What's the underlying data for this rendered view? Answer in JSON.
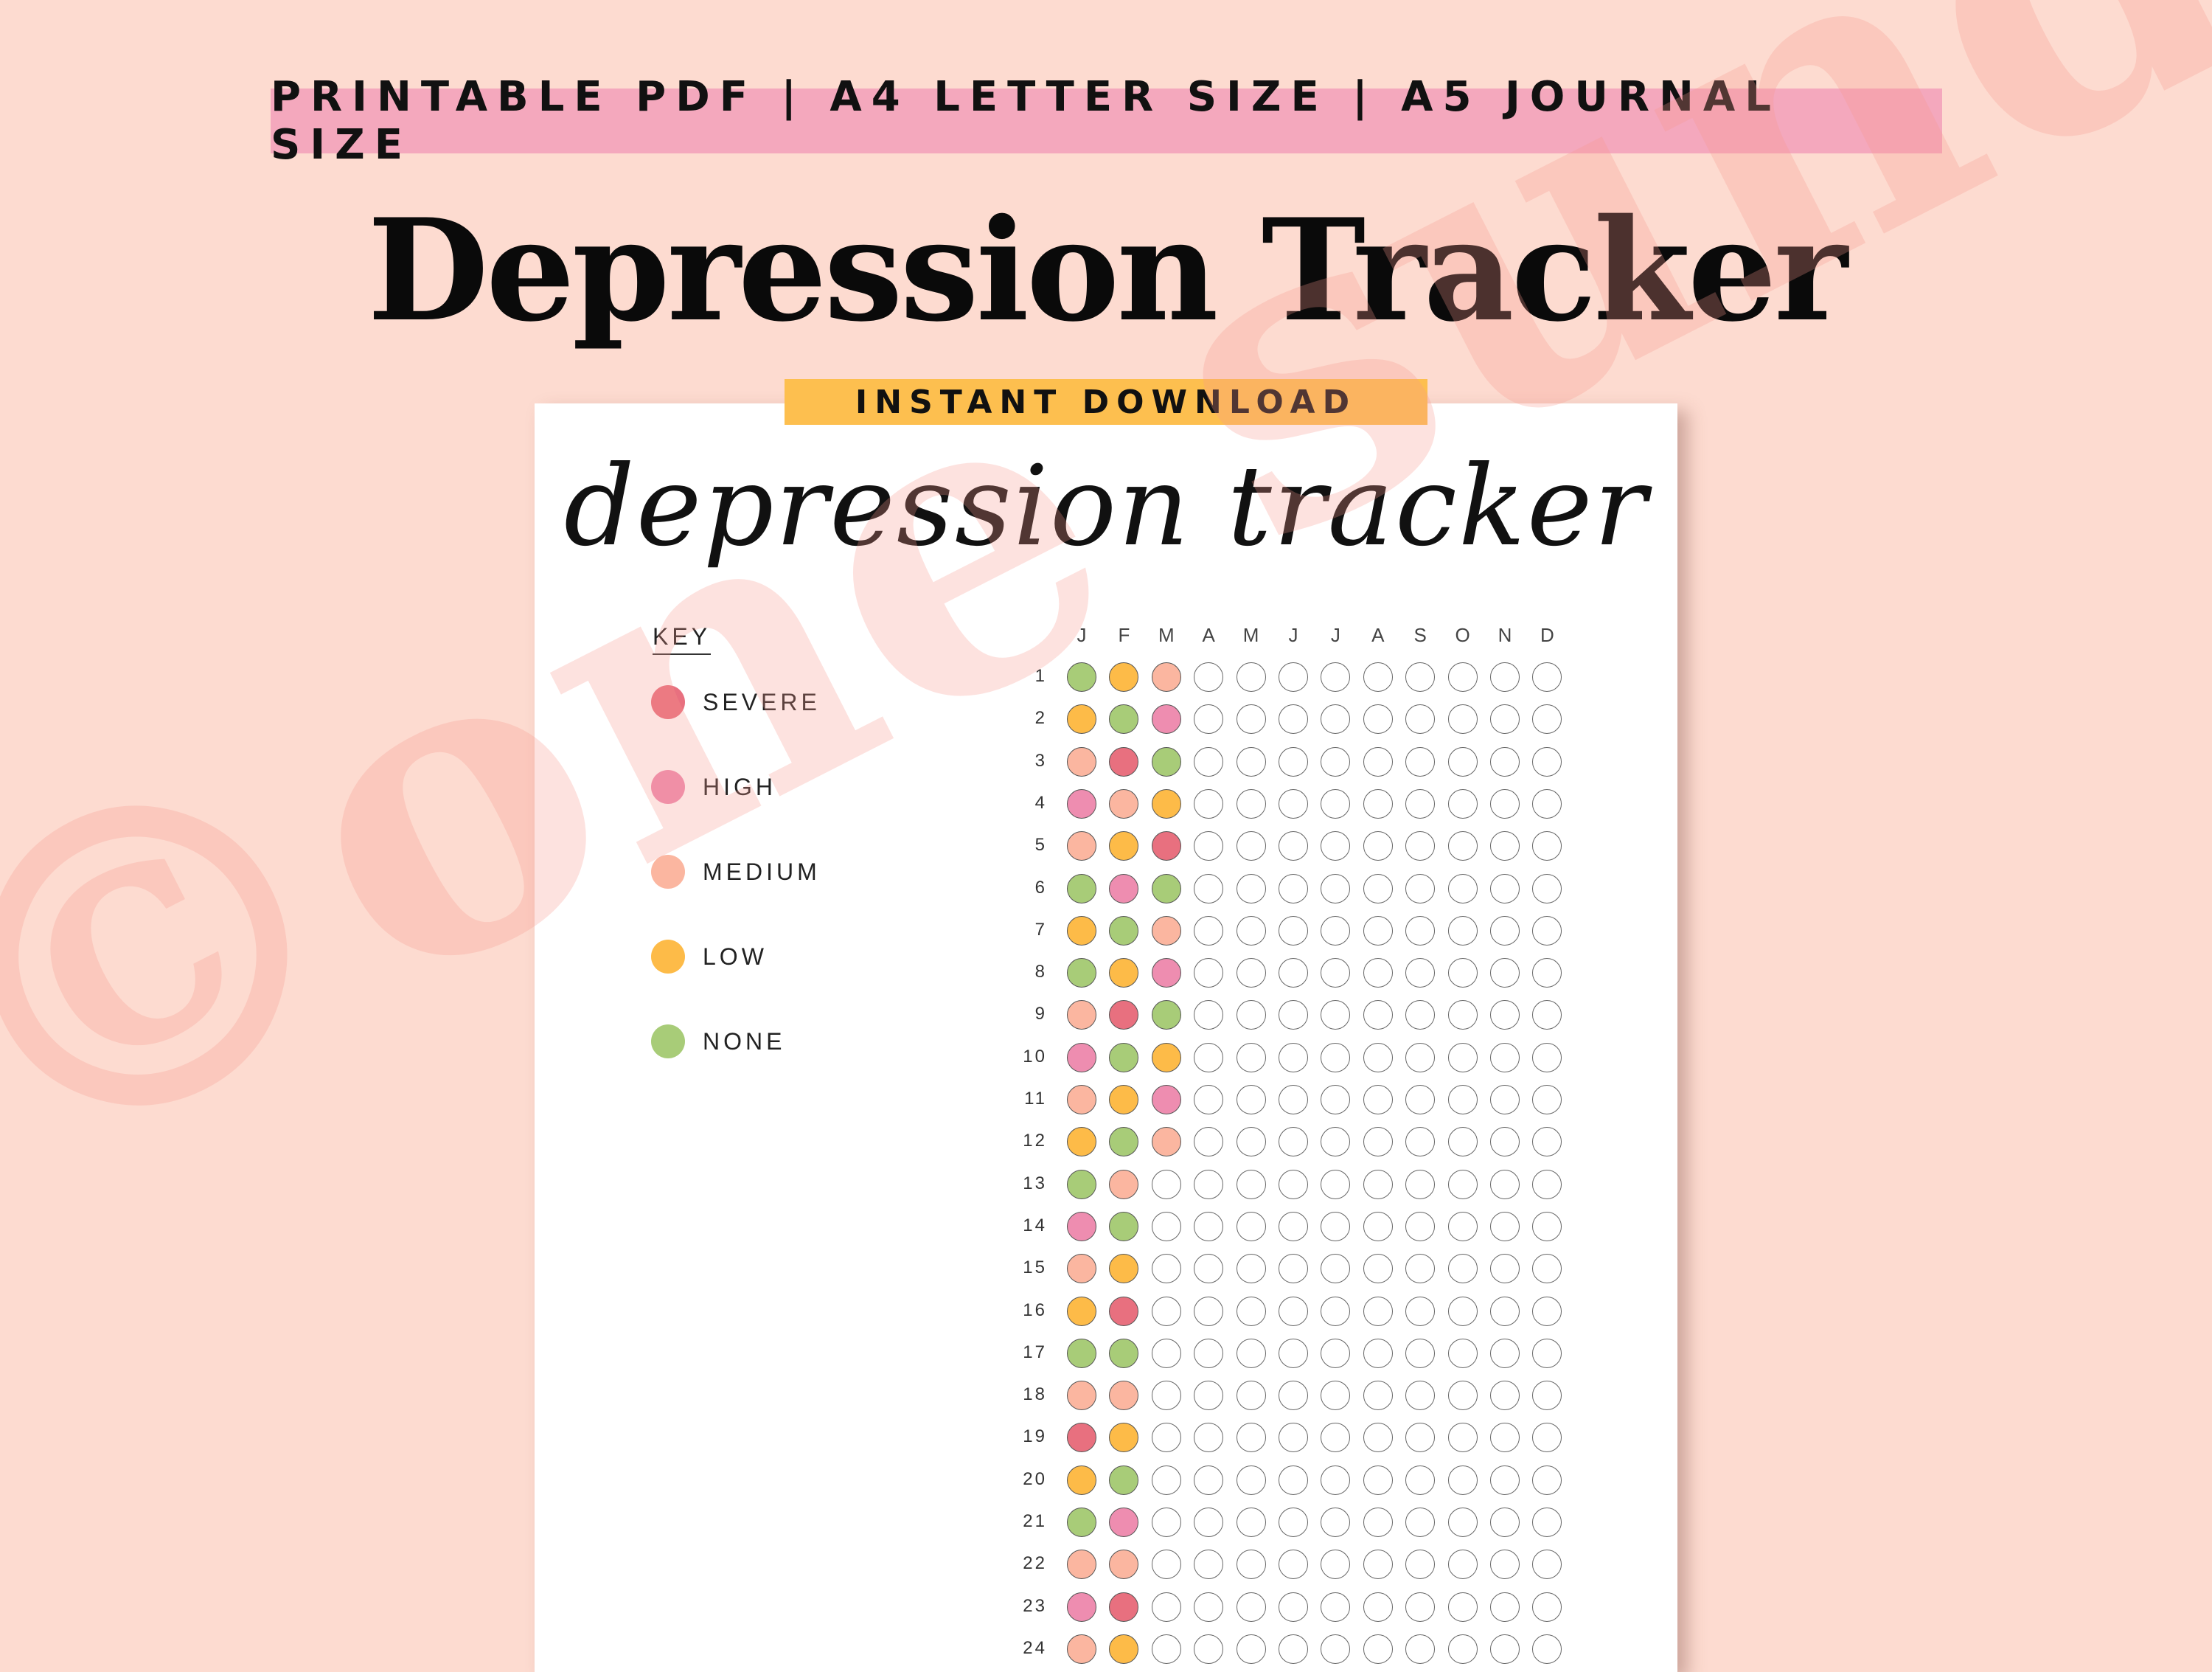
{
  "banner": {
    "text": "PRINTABLE PDF | A4 LETTER SIZE | A5 JOURNAL SIZE"
  },
  "title": "Depression Tracker",
  "download_banner": {
    "text": "INSTANT DOWNLOAD"
  },
  "watermark": "©one sunday",
  "sheet": {
    "script_title": "depression tracker",
    "key": {
      "title": "KEY",
      "items": [
        {
          "level": "severe",
          "label": "SEVERE",
          "color": "#e8707f"
        },
        {
          "level": "high",
          "label": "HIGH",
          "color": "#ee8db0"
        },
        {
          "level": "medium",
          "label": "MEDIUM",
          "color": "#fbb6a0"
        },
        {
          "level": "low",
          "label": "LOW",
          "color": "#fdbb48"
        },
        {
          "level": "none",
          "label": "NONE",
          "color": "#a8cc78"
        }
      ]
    },
    "months": [
      "J",
      "F",
      "M",
      "A",
      "M",
      "J",
      "J",
      "A",
      "S",
      "O",
      "N",
      "D"
    ],
    "days": [
      {
        "day": "1",
        "values": [
          "none",
          "low",
          "medium"
        ]
      },
      {
        "day": "2",
        "values": [
          "low",
          "none",
          "high"
        ]
      },
      {
        "day": "3",
        "values": [
          "medium",
          "severe",
          "none"
        ]
      },
      {
        "day": "4",
        "values": [
          "high",
          "medium",
          "low"
        ]
      },
      {
        "day": "5",
        "values": [
          "medium",
          "low",
          "severe"
        ]
      },
      {
        "day": "6",
        "values": [
          "none",
          "high",
          "none"
        ]
      },
      {
        "day": "7",
        "values": [
          "low",
          "none",
          "medium"
        ]
      },
      {
        "day": "8",
        "values": [
          "none",
          "low",
          "high"
        ]
      },
      {
        "day": "9",
        "values": [
          "medium",
          "severe",
          "none"
        ]
      },
      {
        "day": "10",
        "values": [
          "high",
          "none",
          "low"
        ]
      },
      {
        "day": "11",
        "values": [
          "medium",
          "low",
          "high"
        ]
      },
      {
        "day": "12",
        "values": [
          "low",
          "none",
          "medium"
        ]
      },
      {
        "day": "13",
        "values": [
          "none",
          "medium"
        ]
      },
      {
        "day": "14",
        "values": [
          "high",
          "none"
        ]
      },
      {
        "day": "15",
        "values": [
          "medium",
          "low"
        ]
      },
      {
        "day": "16",
        "values": [
          "low",
          "severe"
        ]
      },
      {
        "day": "17",
        "values": [
          "none",
          "none"
        ]
      },
      {
        "day": "18",
        "values": [
          "medium",
          "medium"
        ]
      },
      {
        "day": "19",
        "values": [
          "severe",
          "low"
        ]
      },
      {
        "day": "20",
        "values": [
          "low",
          "none"
        ]
      },
      {
        "day": "21",
        "values": [
          "none",
          "high"
        ]
      },
      {
        "day": "22",
        "values": [
          "medium",
          "medium"
        ]
      },
      {
        "day": "23",
        "values": [
          "high",
          "severe"
        ]
      },
      {
        "day": "24",
        "values": [
          "medium",
          "low"
        ]
      }
    ]
  }
}
